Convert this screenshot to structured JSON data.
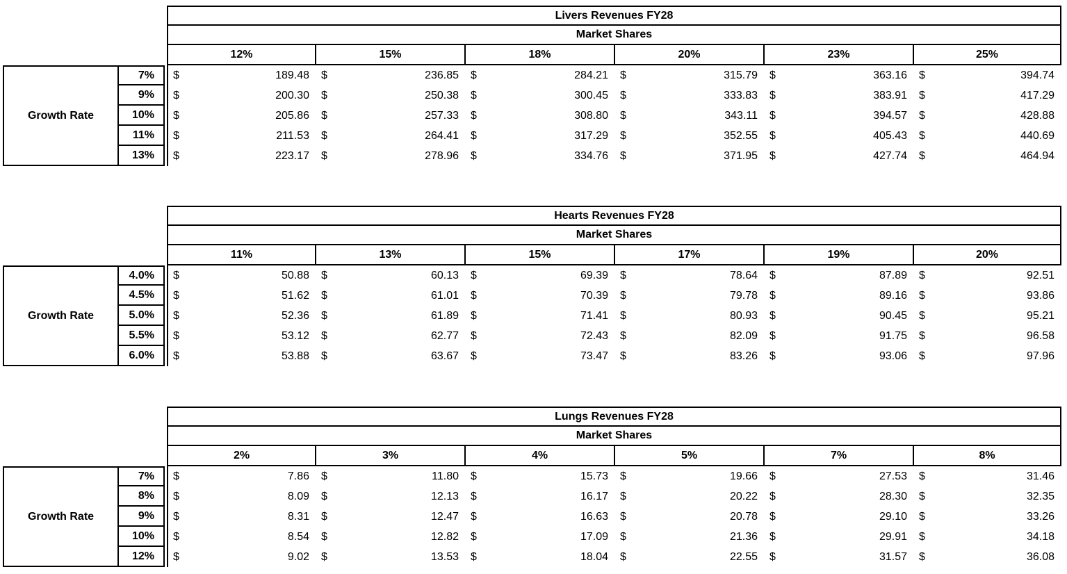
{
  "colors": {
    "background": "#ffffff",
    "border": "#000000",
    "text": "#000000"
  },
  "chart_data": [
    {
      "type": "table",
      "title": "Livers Revenues FY28",
      "subtitle": "Market Shares",
      "row_axis_label": "Growth Rate",
      "currency": "$",
      "columns": [
        "12%",
        "15%",
        "18%",
        "20%",
        "23%",
        "25%"
      ],
      "rows": [
        "7%",
        "9%",
        "10%",
        "11%",
        "13%"
      ],
      "values": [
        [
          "189.48",
          "236.85",
          "284.21",
          "315.79",
          "363.16",
          "394.74"
        ],
        [
          "200.30",
          "250.38",
          "300.45",
          "333.83",
          "383.91",
          "417.29"
        ],
        [
          "205.86",
          "257.33",
          "308.80",
          "343.11",
          "394.57",
          "428.88"
        ],
        [
          "211.53",
          "264.41",
          "317.29",
          "352.55",
          "405.43",
          "440.69"
        ],
        [
          "223.17",
          "278.96",
          "334.76",
          "371.95",
          "427.74",
          "464.94"
        ]
      ]
    },
    {
      "type": "table",
      "title": "Hearts Revenues FY28",
      "subtitle": "Market Shares",
      "row_axis_label": "Growth Rate",
      "currency": "$",
      "columns": [
        "11%",
        "13%",
        "15%",
        "17%",
        "19%",
        "20%"
      ],
      "rows": [
        "4.0%",
        "4.5%",
        "5.0%",
        "5.5%",
        "6.0%"
      ],
      "values": [
        [
          "50.88",
          "60.13",
          "69.39",
          "78.64",
          "87.89",
          "92.51"
        ],
        [
          "51.62",
          "61.01",
          "70.39",
          "79.78",
          "89.16",
          "93.86"
        ],
        [
          "52.36",
          "61.89",
          "71.41",
          "80.93",
          "90.45",
          "95.21"
        ],
        [
          "53.12",
          "62.77",
          "72.43",
          "82.09",
          "91.75",
          "96.58"
        ],
        [
          "53.88",
          "63.67",
          "73.47",
          "83.26",
          "93.06",
          "97.96"
        ]
      ]
    },
    {
      "type": "table",
      "title": "Lungs Revenues FY28",
      "subtitle": "Market Shares",
      "row_axis_label": "Growth Rate",
      "currency": "$",
      "columns": [
        "2%",
        "3%",
        "4%",
        "5%",
        "7%",
        "8%"
      ],
      "rows": [
        "7%",
        "8%",
        "9%",
        "10%",
        "12%"
      ],
      "values": [
        [
          "7.86",
          "11.80",
          "15.73",
          "19.66",
          "27.53",
          "31.46"
        ],
        [
          "8.09",
          "12.13",
          "16.17",
          "20.22",
          "28.30",
          "32.35"
        ],
        [
          "8.31",
          "12.47",
          "16.63",
          "20.78",
          "29.10",
          "33.26"
        ],
        [
          "8.54",
          "12.82",
          "17.09",
          "21.36",
          "29.91",
          "34.18"
        ],
        [
          "9.02",
          "13.53",
          "18.04",
          "22.55",
          "31.57",
          "36.08"
        ]
      ]
    }
  ]
}
